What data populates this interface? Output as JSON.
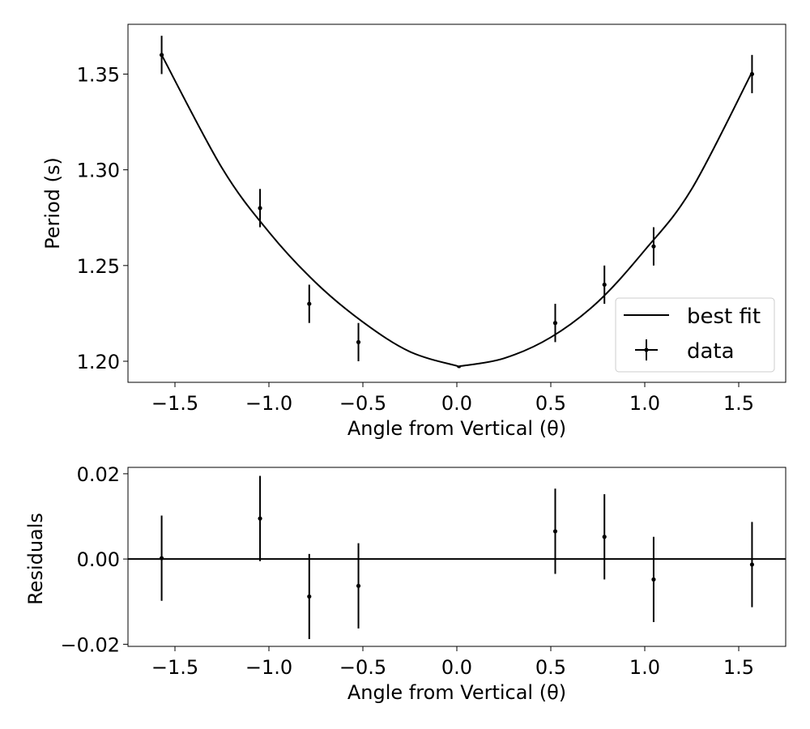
{
  "chart_data": [
    {
      "type": "scatter",
      "panel": "main",
      "xlabel": "Angle from Vertical (θ)",
      "ylabel": "Period (s)",
      "xlim": [
        -1.75,
        1.75
      ],
      "ylim": [
        1.189,
        1.376
      ],
      "xticks": [
        -1.5,
        -1.0,
        -0.5,
        0.0,
        0.5,
        1.0,
        1.5
      ],
      "xtick_labels": [
        "−1.5",
        "−1.0",
        "−0.5",
        "0.0",
        "0.5",
        "1.0",
        "1.5"
      ],
      "yticks": [
        1.2,
        1.25,
        1.3,
        1.35
      ],
      "ytick_labels": [
        "1.20",
        "1.25",
        "1.30",
        "1.35"
      ],
      "grid": false,
      "legend": {
        "placement": "lower right",
        "entries": [
          {
            "label": "best fit",
            "marker": "line"
          },
          {
            "label": "data",
            "marker": "errorbar"
          }
        ]
      },
      "series": [
        {
          "name": "data",
          "kind": "errorbar",
          "color": "#000000",
          "x": [
            -1.5708,
            -1.0472,
            -0.7854,
            -0.5236,
            0.5236,
            0.7854,
            1.0472,
            1.5708
          ],
          "y": [
            1.36,
            1.28,
            1.23,
            1.21,
            1.22,
            1.24,
            1.26,
            1.35
          ],
          "yerr": [
            0.01,
            0.01,
            0.01,
            0.01,
            0.01,
            0.01,
            0.01,
            0.01
          ]
        },
        {
          "name": "best fit",
          "kind": "line",
          "color": "#000000",
          "x": [
            -1.5708,
            -1.25,
            -1.0,
            -0.75,
            -0.5,
            -0.25,
            0.0,
            0.02,
            0.25,
            0.5,
            0.75,
            1.0,
            1.25,
            1.5708
          ],
          "y": [
            1.36,
            1.301,
            1.2675,
            1.241,
            1.2205,
            1.205,
            1.1976,
            1.1975,
            1.2015,
            1.2125,
            1.231,
            1.258,
            1.29,
            1.351
          ]
        }
      ]
    },
    {
      "type": "scatter",
      "panel": "residuals",
      "xlabel": "Angle from Vertical (θ)",
      "ylabel": "Residuals",
      "xlim": [
        -1.75,
        1.75
      ],
      "ylim": [
        -0.0205,
        0.0215
      ],
      "xticks": [
        -1.5,
        -1.0,
        -0.5,
        0.0,
        0.5,
        1.0,
        1.5
      ],
      "xtick_labels": [
        "−1.5",
        "−1.0",
        "−0.5",
        "0.0",
        "0.5",
        "1.0",
        "1.5"
      ],
      "yticks": [
        -0.02,
        0.0,
        0.02
      ],
      "ytick_labels": [
        "−0.02",
        "0.00",
        "0.02"
      ],
      "grid": false,
      "reference_line": 0.0,
      "series": [
        {
          "kind": "errorbar",
          "color": "#000000",
          "x": [
            -1.5708,
            -1.0472,
            -0.7854,
            -0.5236,
            0.5236,
            0.7854,
            1.0472,
            1.5708
          ],
          "y": [
            0.0002,
            0.0095,
            -0.0088,
            -0.0063,
            0.0065,
            0.0052,
            -0.0048,
            -0.0013
          ],
          "yerr": [
            0.01,
            0.01,
            0.01,
            0.01,
            0.01,
            0.01,
            0.01,
            0.01
          ]
        }
      ]
    }
  ]
}
